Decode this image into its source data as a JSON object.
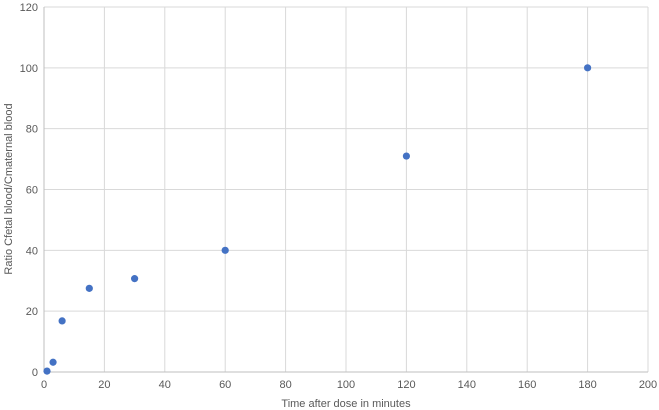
{
  "chart_data": {
    "type": "scatter",
    "title": "",
    "xlabel": "Time after dose in minutes",
    "ylabel": "Ratio Cfetal blood/Cmaternal blood",
    "xlim": [
      0,
      200
    ],
    "ylim": [
      0,
      120
    ],
    "x_ticks": [
      0,
      20,
      40,
      60,
      80,
      100,
      120,
      140,
      160,
      180,
      200
    ],
    "y_ticks": [
      0,
      20,
      40,
      60,
      80,
      100,
      120
    ],
    "grid": true,
    "legend": "none",
    "marker_color": "#4472c4",
    "series": [
      {
        "x": [
          1,
          3,
          6,
          15,
          30,
          60,
          120,
          180
        ],
        "y": [
          0.3,
          3.2,
          16.8,
          27.5,
          30.7,
          40,
          71,
          100
        ]
      }
    ]
  }
}
